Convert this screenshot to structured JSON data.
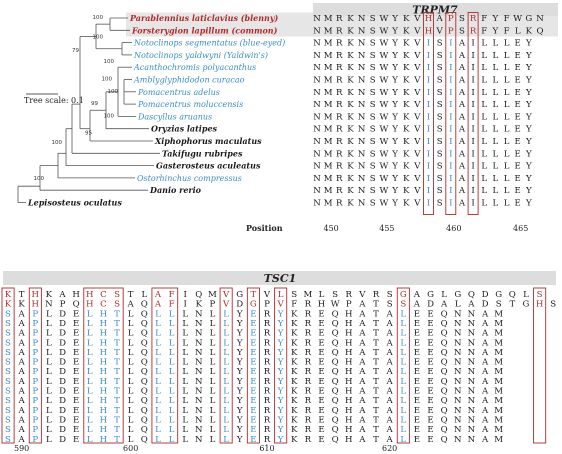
{
  "colors": {
    "red": "#b02a2a",
    "blue": "#3a8ec4",
    "black": "#1a1a1a",
    "band": "#dddddd",
    "highlight": "#e6e6e6",
    "box": "#b02a2a",
    "branch": "#555555"
  },
  "tree_scale_label": "Tree scale: 0.1",
  "position_label": "Position",
  "species": [
    {
      "name": "Parablennius laticlavius (blenny)",
      "group": "red"
    },
    {
      "name": "Forsterygion lapillum (common)",
      "group": "red"
    },
    {
      "name": "Notoclinops segmentatus (blue-eyed)",
      "group": "blue"
    },
    {
      "name": "Notoclinops yaldwyni (Yaldwin's)",
      "group": "blue"
    },
    {
      "name": "Acanthochromis polyacanthus",
      "group": "blue"
    },
    {
      "name": "Amblyglyphidodon curacao",
      "group": "blue"
    },
    {
      "name": "Pomacentrus adelus",
      "group": "blue"
    },
    {
      "name": "Pomacentrus moluccensis",
      "group": "blue"
    },
    {
      "name": "Dascyllus aruanus",
      "group": "blue"
    },
    {
      "name": "Oryzias latipes",
      "group": "black"
    },
    {
      "name": "Xiphophorus maculatus",
      "group": "black"
    },
    {
      "name": "Takifugu rubripes",
      "group": "black"
    },
    {
      "name": "Gasterosteus aculeatus",
      "group": "black"
    },
    {
      "name": "Ostorhinchus compressus",
      "group": "blue"
    },
    {
      "name": "Danio rerio",
      "group": "black"
    },
    {
      "name": "Lepisosteus oculatus",
      "group": "black"
    }
  ],
  "bootstrap": [
    "100",
    "100",
    "79",
    "100",
    "100",
    "100",
    "99",
    "100",
    "95",
    "100",
    "100"
  ],
  "trpm7": {
    "title": "TRPM7",
    "ticks": [
      "450",
      "455",
      "460",
      "465"
    ],
    "rows": [
      "NMRKNSWYKVHAPSRFYFWGN",
      "NMRKNSWYKVHVPSRFYFLKQ",
      "NMRKNSWYKVISIAILLLEY",
      "NMRKNSWYKVISIAILLLEY",
      "NMRKNSWYKVISIAILLLEY",
      "NMRKNSWYKVISIAILLLEY",
      "NMRKNSWYKVISIAILLLEY",
      "NMRKNSWYKVISIAILLLEY",
      "NMRKNSWYKVISIAILLLEY",
      "NMRKNSWYKVISIAILLLEY",
      "NMRKNSWYKVISIAILLLEY",
      "NMRKNSWYKVISIAILLLEY",
      "NMRKNSWYKVISIAILLLEY",
      "NMRKNSWYKVISIAILLLEY",
      "NMRKNSWYKVISIAILLLEY",
      "NMRKNSWYKVISIAILLLEY"
    ]
  },
  "tsc1": {
    "title": "TSC1",
    "ticks": [
      "590",
      "600",
      "610",
      "620"
    ],
    "rows": [
      "KTHKAHHCSTLAFIQMVGTVLSMLSRVRSGAGLGQDGQLS",
      "KKHNPQHCSAQAFIKPVDGPVFRHWPATSSADALADSTGHS",
      "SAPLDELHTLQLLLNLLYERYKREQHATALEEQNNAM",
      "SAPLDELHTLQLLLNLLYERYKREQHATALEEQNNAM",
      "SAPLDELHTLQLLLNLLYERYKREQHATALEEQNNAM",
      "SAPLDELHTLQLLLNLLYERYKREQHATALEEQNNAM",
      "SAPLDELHTLQLLLNLLYERYKREQHATALEEQNNAM",
      "SAPLDELHTLQLLLNLLYERYKREQHATALEEQNNAM",
      "SAPLDELHTLQLLLNLLYERYKREQHATALEEQNNAM",
      "SAPLDELHTLQLLLNLLYERYKREQHATALEEQNNAM",
      "SAPLDELHTLQLLLNLLYERYKREQHATALEEQNNAM",
      "SAPLDELHTLQLLLNLLYERYKREQHATALEEQNNAM",
      "SAPLDELHTLQLLLNLLYERYKREQHATALEEQNNAM",
      "SAPLDELHTLQLLLNLLYERYKREQHATALEEQNNAM",
      "SAPLDELHTLQLLLNLLYERYKREQHATALEEQNNAM",
      "SAPLDELHTLQLLLNLLYERYKREQHATALEEQNNAM"
    ]
  }
}
